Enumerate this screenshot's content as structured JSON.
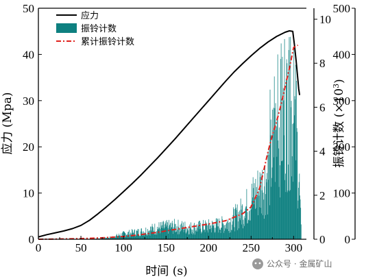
{
  "chart_data": {
    "type": "line+bar",
    "xlabel": "时间 (s)",
    "ylabel_left": "应力 (Mpa)",
    "ylabel_right": "振铃计数 (×10",
    "ylabel_right_sup": "3",
    "ylabel_right_close": ")",
    "xlim": [
      0,
      315
    ],
    "ylim_stress": [
      0,
      50
    ],
    "ylim_ringing": [
      0,
      10.5
    ],
    "ylim_cumulative": [
      0,
      500
    ],
    "x_ticks": [
      0,
      50,
      100,
      150,
      200,
      250,
      300
    ],
    "y_ticks_stress": [
      0,
      10,
      20,
      30,
      40,
      50
    ],
    "y_ticks_ringing": [
      0,
      2,
      4,
      6,
      8,
      10
    ],
    "y_ticks_cumulative": [
      0,
      100,
      200,
      300,
      400,
      500
    ],
    "legend_position": "top-left",
    "colors": {
      "stress": "#000000",
      "ringing": "#0e8080",
      "cumulative": "#e0201b"
    },
    "series": [
      {
        "name": "应力",
        "axis": "stress",
        "style": "solid-line",
        "x": [
          0,
          10,
          20,
          30,
          40,
          50,
          60,
          70,
          80,
          90,
          100,
          110,
          120,
          130,
          140,
          150,
          160,
          170,
          180,
          190,
          200,
          210,
          220,
          230,
          240,
          250,
          260,
          270,
          280,
          290,
          295,
          299,
          301,
          303,
          305,
          306,
          307
        ],
        "y": [
          0.5,
          1.0,
          1.4,
          1.8,
          2.3,
          3.0,
          4.1,
          5.5,
          7.0,
          8.6,
          10.3,
          12.0,
          13.8,
          15.7,
          17.6,
          19.6,
          21.6,
          23.7,
          25.8,
          27.9,
          30.0,
          32.1,
          34.2,
          36.2,
          38.0,
          39.7,
          41.3,
          42.7,
          43.9,
          44.8,
          45.1,
          45.0,
          42.0,
          38.5,
          34.5,
          32.5,
          31.2
        ]
      },
      {
        "name": "振铃计数",
        "axis": "ringing",
        "style": "bars"
      },
      {
        "name": "累计振铃计数",
        "axis": "cumulative",
        "style": "dash-dot-line",
        "x": [
          0,
          20,
          40,
          60,
          80,
          100,
          120,
          140,
          160,
          180,
          200,
          220,
          240,
          250,
          260,
          265,
          270,
          275,
          280,
          285,
          290,
          295,
          300,
          305
        ],
        "y": [
          0,
          0.5,
          1.0,
          2.0,
          3.5,
          6,
          10,
          15,
          21,
          27,
          33,
          40,
          55,
          70,
          110,
          150,
          190,
          225,
          255,
          290,
          330,
          370,
          415,
          420
        ]
      }
    ]
  },
  "watermark": {
    "text": "公众号 · 金属矿山"
  }
}
